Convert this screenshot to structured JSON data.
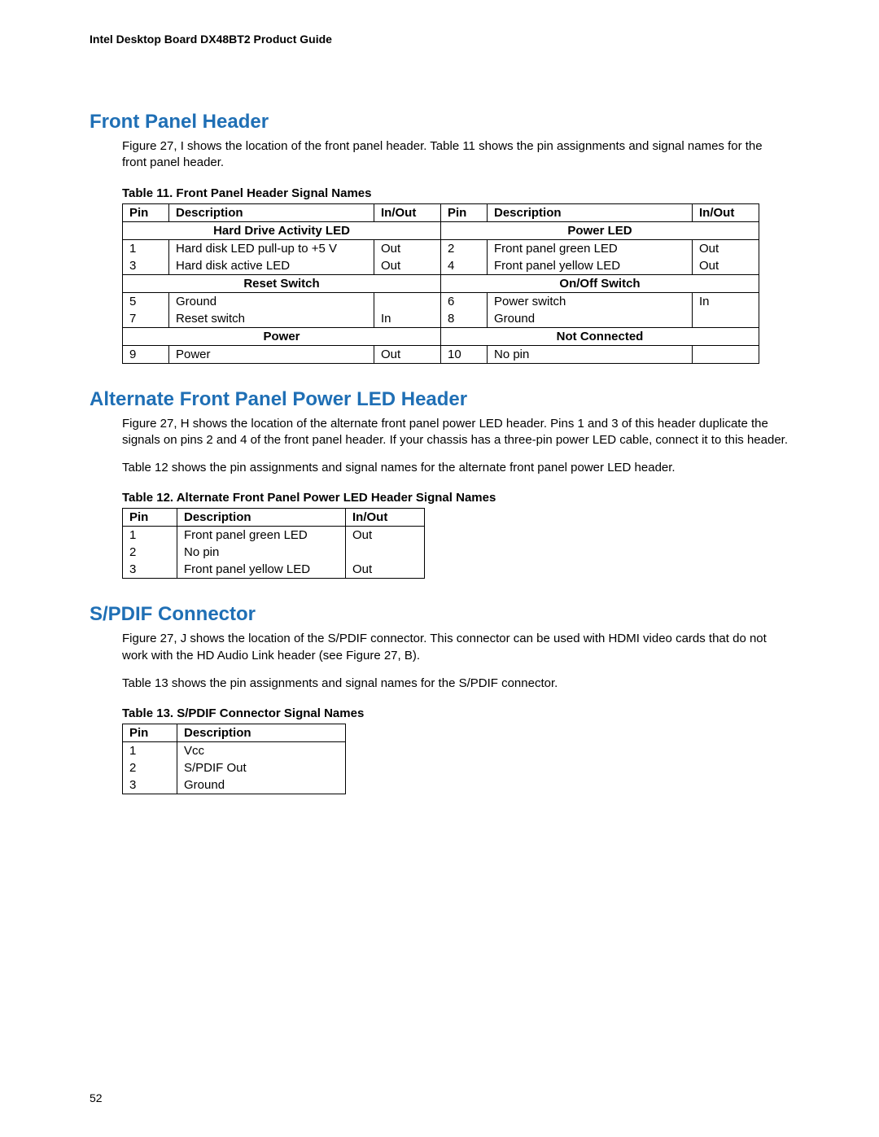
{
  "doc_header": "Intel Desktop Board DX48BT2 Product Guide",
  "page_number": "52",
  "section1": {
    "title": "Front Panel Header",
    "para": "Figure 27, I shows the location of the front panel header.  Table 11 shows the pin assignments and signal names for the front panel header.",
    "table_caption": "Table 11. Front Panel Header Signal Names",
    "headers": {
      "pin": "Pin",
      "desc": "Description",
      "io": "In/Out"
    },
    "group1": {
      "left": "Hard Drive Activity LED",
      "right": "Power LED"
    },
    "rows1": [
      {
        "p1": "1",
        "d1": "Hard disk LED pull-up to +5 V",
        "io1": "Out",
        "p2": "2",
        "d2": "Front panel green LED",
        "io2": "Out"
      },
      {
        "p1": "3",
        "d1": "Hard disk active LED",
        "io1": "Out",
        "p2": "4",
        "d2": "Front panel yellow LED",
        "io2": "Out"
      }
    ],
    "group2": {
      "left": "Reset Switch",
      "right": "On/Off Switch"
    },
    "rows2": [
      {
        "p1": "5",
        "d1": "Ground",
        "io1": "",
        "p2": "6",
        "d2": "Power switch",
        "io2": "In"
      },
      {
        "p1": "7",
        "d1": "Reset switch",
        "io1": "In",
        "p2": "8",
        "d2": "Ground",
        "io2": ""
      }
    ],
    "group3": {
      "left": "Power",
      "right": "Not Connected"
    },
    "rows3": [
      {
        "p1": "9",
        "d1": "Power",
        "io1": "Out",
        "p2": "10",
        "d2": "No pin",
        "io2": ""
      }
    ]
  },
  "section2": {
    "title": "Alternate Front Panel Power LED Header",
    "para1": "Figure 27, H shows the location of the alternate front panel power LED header.  Pins 1 and 3 of this header duplicate the signals on pins 2 and 4 of the front panel header.  If your chassis has a three-pin power LED cable, connect it to this header.",
    "para2": "Table 12 shows the pin assignments and signal names for the alternate front panel power LED header.",
    "table_caption": "Table 12. Alternate Front Panel Power LED Header Signal Names",
    "headers": {
      "pin": "Pin",
      "desc": "Description",
      "io": "In/Out"
    },
    "rows": [
      {
        "pin": "1",
        "desc": "Front panel green LED",
        "io": "Out"
      },
      {
        "pin": "2",
        "desc": "No pin",
        "io": ""
      },
      {
        "pin": "3",
        "desc": "Front panel yellow LED",
        "io": "Out"
      }
    ]
  },
  "section3": {
    "title": "S/PDIF Connector",
    "para1": "Figure 27, J shows the location of the S/PDIF connector.  This connector can be used with HDMI video cards that do not work with the HD Audio Link header (see Figure 27, B).",
    "para2": "Table 13 shows the pin assignments and signal names for the S/PDIF connector.",
    "table_caption": "Table 13. S/PDIF Connector Signal Names",
    "headers": {
      "pin": "Pin",
      "desc": "Description"
    },
    "rows": [
      {
        "pin": "1",
        "desc": "Vcc"
      },
      {
        "pin": "2",
        "desc": "S/PDIF Out"
      },
      {
        "pin": "3",
        "desc": "Ground"
      }
    ]
  },
  "col_widths": {
    "t11": {
      "pin": 40,
      "desc": 235,
      "io": 65
    },
    "t12": {
      "pin": 50,
      "desc": 190,
      "io": 80
    },
    "t13": {
      "pin": 50,
      "desc": 190
    }
  }
}
